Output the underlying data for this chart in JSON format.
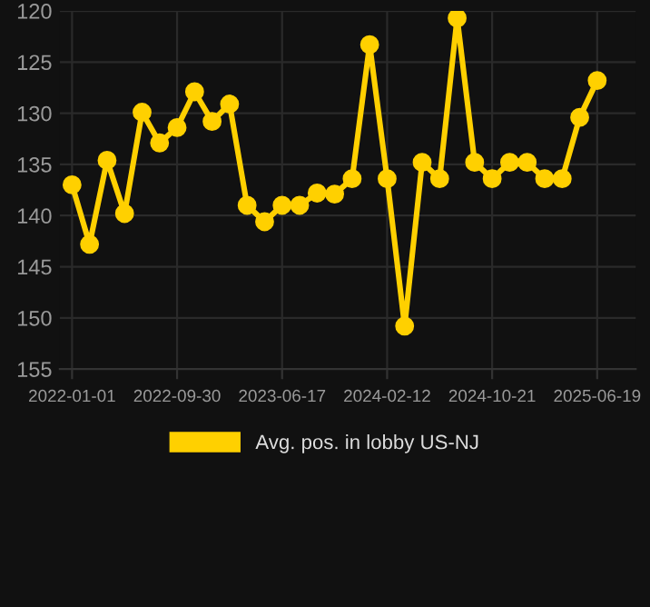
{
  "chart_data": {
    "type": "line",
    "categories": [
      "2022-01-01",
      null,
      null,
      null,
      null,
      null,
      "2022-09-30",
      null,
      null,
      null,
      null,
      null,
      "2023-06-17",
      null,
      null,
      null,
      null,
      null,
      "2024-02-12",
      null,
      null,
      null,
      null,
      null,
      "2024-10-21",
      null,
      null,
      null,
      null,
      null,
      "2025-06-19"
    ],
    "series": [
      {
        "name": "Avg. pos. in lobby US-NJ",
        "color": "#ffd000",
        "values": [
          137.0,
          142.8,
          134.6,
          139.8,
          129.9,
          132.9,
          131.4,
          127.9,
          130.8,
          129.1,
          139.0,
          140.6,
          139.0,
          139.0,
          137.8,
          137.9,
          136.4,
          123.3,
          136.4,
          150.8,
          134.8,
          136.4,
          120.7,
          134.8,
          136.4,
          134.8,
          134.8,
          136.4,
          136.4,
          130.4,
          126.8
        ]
      }
    ],
    "ylim": [
      155,
      120
    ],
    "yticks": [
      120,
      125,
      130,
      135,
      140,
      145,
      150,
      155
    ],
    "grid": true,
    "legend": "bottom",
    "marker": "circle",
    "line_style": "solid"
  }
}
